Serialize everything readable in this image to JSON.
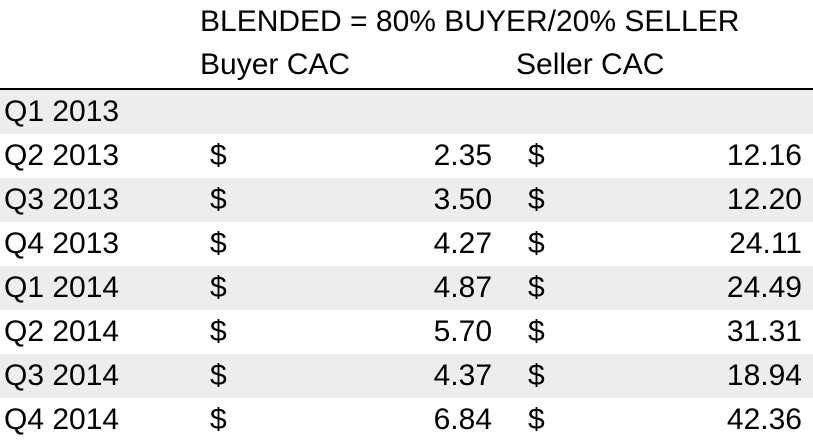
{
  "chart_data": {
    "type": "table",
    "title": "BLENDED = 80% BUYER/20% SELLER",
    "columns": [
      "Buyer CAC",
      "Seller CAC"
    ],
    "currency_symbol": "$",
    "rows": [
      {
        "quarter": "Q1 2013",
        "buyer_cac": null,
        "seller_cac": null
      },
      {
        "quarter": "Q2 2013",
        "buyer_cac": "2.35",
        "seller_cac": "12.16"
      },
      {
        "quarter": "Q3 2013",
        "buyer_cac": "3.50",
        "seller_cac": "12.20"
      },
      {
        "quarter": "Q4 2013",
        "buyer_cac": "4.27",
        "seller_cac": "24.11"
      },
      {
        "quarter": "Q1 2014",
        "buyer_cac": "4.87",
        "seller_cac": "24.49"
      },
      {
        "quarter": "Q2 2014",
        "buyer_cac": "5.70",
        "seller_cac": "31.31"
      },
      {
        "quarter": "Q3 2014",
        "buyer_cac": "4.37",
        "seller_cac": "18.94"
      },
      {
        "quarter": "Q4 2014",
        "buyer_cac": "6.84",
        "seller_cac": "42.36"
      }
    ],
    "colors": {
      "shaded_row": "#ededed",
      "text": "#000000",
      "rule": "#000000"
    }
  }
}
